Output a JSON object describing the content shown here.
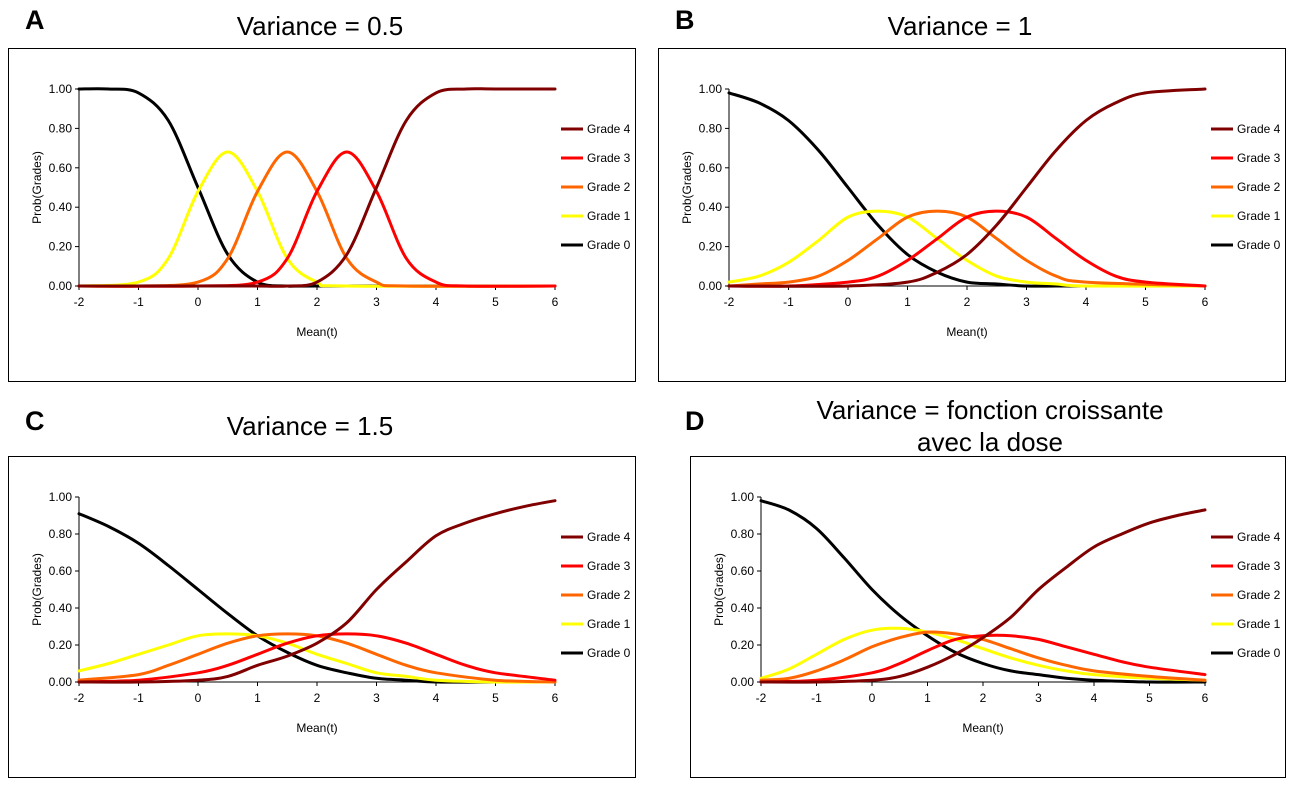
{
  "panels": [
    {
      "letter": "A",
      "title_lines": [
        "Variance = 0.5"
      ],
      "chart_data": {
        "type": "line",
        "xlabel": "Mean(t)",
        "ylabel": "Prob(Grades)",
        "xlim": [
          -2,
          6
        ],
        "ylim": [
          0,
          1
        ],
        "x_ticks": [
          "-2",
          "-1",
          "0",
          "1",
          "2",
          "3",
          "4",
          "5",
          "6"
        ],
        "y_ticks": [
          "0.00",
          "0.20",
          "0.40",
          "0.60",
          "0.80",
          "1.00"
        ],
        "legend_position": "right",
        "series": [
          {
            "name": "Grade 4",
            "color": "#800000",
            "x": [
              -2,
              -1,
              0,
              1,
              1.5,
              2,
              2.5,
              3,
              3.5,
              4,
              4.5,
              5,
              6
            ],
            "y": [
              0,
              0,
              0,
              0,
              0,
              0.02,
              0.16,
              0.5,
              0.84,
              0.98,
              1,
              1,
              1
            ]
          },
          {
            "name": "Grade 3",
            "color": "#ff0000",
            "x": [
              -2,
              0,
              1,
              1.5,
              2,
              2.5,
              3,
              3.5,
              4,
              4.5,
              6
            ],
            "y": [
              0,
              0,
              0.02,
              0.14,
              0.48,
              0.68,
              0.48,
              0.14,
              0.02,
              0,
              0
            ]
          },
          {
            "name": "Grade 2",
            "color": "#ff6600",
            "x": [
              -2,
              -1,
              0,
              0.5,
              1,
              1.5,
              2,
              2.5,
              3,
              3.5,
              6
            ],
            "y": [
              0,
              0,
              0.02,
              0.14,
              0.48,
              0.68,
              0.48,
              0.14,
              0.02,
              0,
              0
            ]
          },
          {
            "name": "Grade 1",
            "color": "#ffff00",
            "x": [
              -2,
              -1,
              -0.5,
              0,
              0.5,
              1,
              1.5,
              2,
              2.5,
              6
            ],
            "y": [
              0,
              0.02,
              0.14,
              0.48,
              0.68,
              0.48,
              0.14,
              0.02,
              0,
              0
            ]
          },
          {
            "name": "Grade 0",
            "color": "#000000",
            "x": [
              -2,
              -1.5,
              -1,
              -0.5,
              0,
              0.5,
              1,
              1.5,
              2,
              6
            ],
            "y": [
              1,
              1,
              0.98,
              0.84,
              0.5,
              0.16,
              0.02,
              0,
              0,
              0
            ]
          }
        ]
      }
    },
    {
      "letter": "B",
      "title_lines": [
        "Variance = 1"
      ],
      "chart_data": {
        "type": "line",
        "xlabel": "Mean(t)",
        "ylabel": "Prob(Grades)",
        "xlim": [
          -2,
          6
        ],
        "ylim": [
          0,
          1
        ],
        "x_ticks": [
          "-2",
          "-1",
          "0",
          "1",
          "2",
          "3",
          "4",
          "5",
          "6"
        ],
        "y_ticks": [
          "0.00",
          "0.20",
          "0.40",
          "0.60",
          "0.80",
          "1.00"
        ],
        "legend_position": "right",
        "series": [
          {
            "name": "Grade 4",
            "color": "#800000",
            "x": [
              -2,
              0,
              1,
              1.5,
              2,
              2.5,
              3,
              3.5,
              4,
              4.5,
              5,
              6
            ],
            "y": [
              0,
              0,
              0.02,
              0.07,
              0.16,
              0.31,
              0.5,
              0.69,
              0.84,
              0.93,
              0.98,
              1
            ]
          },
          {
            "name": "Grade 3",
            "color": "#ff0000",
            "x": [
              -2,
              -1,
              0,
              0.5,
              1,
              1.5,
              2,
              2.5,
              3,
              3.5,
              4,
              4.5,
              5,
              6
            ],
            "y": [
              0,
              0,
              0.02,
              0.05,
              0.13,
              0.24,
              0.35,
              0.38,
              0.35,
              0.24,
              0.13,
              0.05,
              0.02,
              0
            ]
          },
          {
            "name": "Grade 2",
            "color": "#ff6600",
            "x": [
              -2,
              -1.5,
              -1,
              -0.5,
              0,
              0.5,
              1,
              1.5,
              2,
              2.5,
              3,
              3.5,
              4,
              6
            ],
            "y": [
              0,
              0.01,
              0.02,
              0.05,
              0.13,
              0.24,
              0.35,
              0.38,
              0.35,
              0.24,
              0.13,
              0.05,
              0.02,
              0
            ]
          },
          {
            "name": "Grade 1",
            "color": "#ffff00",
            "x": [
              -2,
              -1.5,
              -1,
              -0.5,
              0,
              0.5,
              1,
              1.5,
              2,
              2.5,
              3,
              3.5,
              4,
              6
            ],
            "y": [
              0.02,
              0.05,
              0.12,
              0.23,
              0.35,
              0.38,
              0.35,
              0.24,
              0.13,
              0.05,
              0.02,
              0.01,
              0,
              0
            ]
          },
          {
            "name": "Grade 0",
            "color": "#000000",
            "x": [
              -2,
              -1.5,
              -1,
              -0.5,
              0,
              0.5,
              1,
              1.5,
              2,
              2.5,
              3,
              3.5,
              4,
              6
            ],
            "y": [
              0.98,
              0.93,
              0.84,
              0.69,
              0.5,
              0.31,
              0.16,
              0.07,
              0.02,
              0.01,
              0,
              0,
              0,
              0
            ]
          }
        ]
      }
    },
    {
      "letter": "C",
      "title_lines": [
        "Variance = 1.5"
      ],
      "chart_data": {
        "type": "line",
        "xlabel": "Mean(t)",
        "ylabel": "Prob(Grades)",
        "xlim": [
          -2,
          6
        ],
        "ylim": [
          0,
          1
        ],
        "x_ticks": [
          "-2",
          "-1",
          "0",
          "1",
          "2",
          "3",
          "4",
          "5",
          "6"
        ],
        "y_ticks": [
          "0.00",
          "0.20",
          "0.40",
          "0.60",
          "0.80",
          "1.00"
        ],
        "legend_position": "right",
        "series": [
          {
            "name": "Grade 4",
            "color": "#800000",
            "x": [
              -2,
              -1,
              0,
              0.5,
              1,
              1.5,
              2,
              2.5,
              3,
              3.5,
              4,
              4.5,
              5,
              5.5,
              6
            ],
            "y": [
              0,
              0,
              0.01,
              0.03,
              0.09,
              0.14,
              0.21,
              0.32,
              0.5,
              0.65,
              0.79,
              0.86,
              0.91,
              0.95,
              0.98
            ]
          },
          {
            "name": "Grade 3",
            "color": "#ff0000",
            "x": [
              -2,
              -1,
              0,
              0.5,
              1,
              1.5,
              2,
              2.5,
              3,
              3.5,
              4,
              4.5,
              5,
              6
            ],
            "y": [
              0,
              0.01,
              0.05,
              0.09,
              0.15,
              0.21,
              0.25,
              0.26,
              0.25,
              0.21,
              0.15,
              0.09,
              0.05,
              0.01
            ]
          },
          {
            "name": "Grade 2",
            "color": "#ff6600",
            "x": [
              -2,
              -1,
              -0.5,
              0,
              0.5,
              1,
              1.5,
              2,
              2.5,
              3,
              3.5,
              4,
              5,
              6
            ],
            "y": [
              0.01,
              0.04,
              0.09,
              0.15,
              0.21,
              0.25,
              0.26,
              0.25,
              0.21,
              0.15,
              0.09,
              0.05,
              0.01,
              0
            ]
          },
          {
            "name": "Grade 1",
            "color": "#ffff00",
            "x": [
              -2,
              -1.5,
              -1,
              -0.5,
              0,
              0.5,
              1,
              1.5,
              2,
              2.5,
              3,
              3.5,
              4,
              5,
              6
            ],
            "y": [
              0.06,
              0.1,
              0.15,
              0.2,
              0.25,
              0.26,
              0.25,
              0.21,
              0.15,
              0.1,
              0.05,
              0.03,
              0.01,
              0,
              0
            ]
          },
          {
            "name": "Grade 0",
            "color": "#000000",
            "x": [
              -2,
              -1.5,
              -1,
              -0.5,
              0,
              0.5,
              1,
              1.5,
              2,
              2.5,
              3,
              3.5,
              4,
              5,
              6
            ],
            "y": [
              0.91,
              0.84,
              0.75,
              0.63,
              0.5,
              0.37,
              0.25,
              0.16,
              0.09,
              0.05,
              0.02,
              0.01,
              0,
              0,
              0
            ]
          }
        ]
      }
    },
    {
      "letter": "D",
      "title_lines": [
        "Variance = fonction croissante",
        "avec la dose"
      ],
      "chart_data": {
        "type": "line",
        "xlabel": "Mean(t)",
        "ylabel": "Prob(Grades)",
        "xlim": [
          -2,
          6
        ],
        "ylim": [
          0,
          1
        ],
        "x_ticks": [
          "-2",
          "-1",
          "0",
          "1",
          "2",
          "3",
          "4",
          "5",
          "6"
        ],
        "y_ticks": [
          "0.00",
          "0.20",
          "0.40",
          "0.60",
          "0.80",
          "1.00"
        ],
        "legend_position": "right",
        "series": [
          {
            "name": "Grade 4",
            "color": "#800000",
            "x": [
              -2,
              -1,
              0,
              0.5,
              1,
              1.5,
              2,
              2.5,
              3,
              3.5,
              4,
              4.5,
              5,
              5.5,
              6
            ],
            "y": [
              0,
              0,
              0.01,
              0.03,
              0.08,
              0.15,
              0.24,
              0.35,
              0.5,
              0.62,
              0.73,
              0.8,
              0.86,
              0.9,
              0.93
            ]
          },
          {
            "name": "Grade 3",
            "color": "#ff0000",
            "x": [
              -2,
              -1,
              0,
              0.5,
              1,
              1.5,
              2,
              2.5,
              3,
              3.5,
              4,
              4.5,
              5,
              6
            ],
            "y": [
              0,
              0.01,
              0.05,
              0.1,
              0.17,
              0.23,
              0.25,
              0.25,
              0.23,
              0.19,
              0.15,
              0.11,
              0.08,
              0.04
            ]
          },
          {
            "name": "Grade 2",
            "color": "#ff6600",
            "x": [
              -2,
              -1.5,
              -1,
              -0.5,
              0,
              0.5,
              1,
              1.5,
              2,
              2.5,
              3,
              3.5,
              4,
              5,
              6
            ],
            "y": [
              0.01,
              0.02,
              0.06,
              0.12,
              0.19,
              0.24,
              0.27,
              0.26,
              0.23,
              0.18,
              0.13,
              0.09,
              0.06,
              0.03,
              0.01
            ]
          },
          {
            "name": "Grade 1",
            "color": "#ffff00",
            "x": [
              -2,
              -1.5,
              -1,
              -0.5,
              0,
              0.5,
              1,
              1.5,
              2,
              2.5,
              3,
              3.5,
              4,
              5,
              6
            ],
            "y": [
              0.02,
              0.07,
              0.15,
              0.23,
              0.28,
              0.29,
              0.27,
              0.23,
              0.18,
              0.13,
              0.09,
              0.06,
              0.04,
              0.02,
              0.01
            ]
          },
          {
            "name": "Grade 0",
            "color": "#000000",
            "x": [
              -2,
              -1.5,
              -1,
              -0.5,
              0,
              0.5,
              1,
              1.5,
              2,
              2.5,
              3,
              3.5,
              4,
              5,
              6
            ],
            "y": [
              0.98,
              0.93,
              0.83,
              0.67,
              0.5,
              0.36,
              0.25,
              0.16,
              0.1,
              0.06,
              0.04,
              0.02,
              0.01,
              0,
              0
            ]
          }
        ]
      }
    }
  ]
}
